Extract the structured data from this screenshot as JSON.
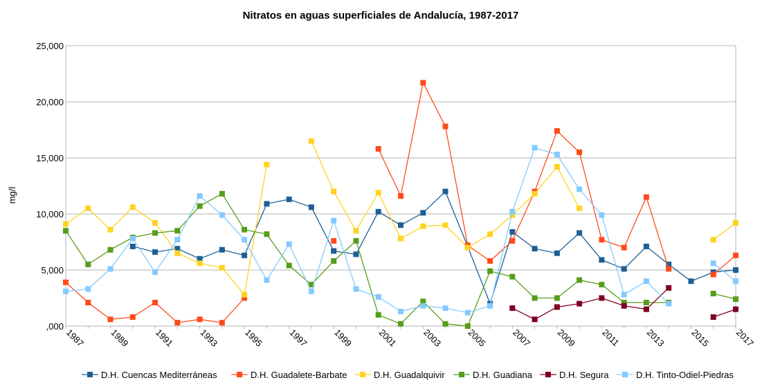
{
  "chart_data": {
    "type": "line",
    "title": "Nitratos en aguas superficiales de Andalucía, 1987-2017",
    "ylabel": "mg/l",
    "xlabel": "",
    "x": [
      1987,
      1988,
      1989,
      1990,
      1991,
      1992,
      1993,
      1994,
      1995,
      1996,
      1997,
      1998,
      1999,
      2000,
      2001,
      2002,
      2003,
      2004,
      2005,
      2006,
      2007,
      2008,
      2009,
      2010,
      2011,
      2012,
      2013,
      2014,
      2015,
      2016,
      2017
    ],
    "x_tick_labels": [
      "1987",
      "1989",
      "1991",
      "1993",
      "1995",
      "1997",
      "1999",
      "2001",
      "2003",
      "2005",
      "2007",
      "2009",
      "2011",
      "2013",
      "2015",
      "2017"
    ],
    "x_tick_values": [
      1987,
      1989,
      1991,
      1993,
      1995,
      1997,
      1999,
      2001,
      2003,
      2005,
      2007,
      2009,
      2011,
      2013,
      2015,
      2017
    ],
    "ylim": [
      0,
      25000
    ],
    "y_ticks": [
      0,
      5000,
      10000,
      15000,
      20000,
      25000
    ],
    "y_tick_labels": [
      ",000",
      "5,000",
      "10,000",
      "15,000",
      "20,000",
      "25,000"
    ],
    "grid": "horizontal",
    "legend_position": "bottom",
    "series": [
      {
        "name": "D.H. Cuencas Mediterráneas",
        "color": "#1f5f96",
        "values": [
          null,
          null,
          null,
          7.1,
          6.6,
          6.9,
          6.0,
          6.8,
          6.3,
          10.9,
          11.3,
          10.6,
          6.7,
          6.4,
          10.2,
          9.0,
          10.1,
          12.0,
          7.1,
          2.0,
          8.4,
          6.9,
          6.5,
          8.3,
          5.9,
          5.1,
          7.1,
          5.5,
          4.0,
          4.8,
          5.0
        ]
      },
      {
        "name": "D.H. Guadalete-Barbate",
        "color": "#ff4b1a",
        "values": [
          3.9,
          2.1,
          0.6,
          0.8,
          2.1,
          0.3,
          0.6,
          0.3,
          2.5,
          null,
          null,
          null,
          7.6,
          null,
          15.8,
          11.6,
          21.7,
          17.8,
          7.2,
          5.8,
          7.6,
          12.0,
          17.4,
          15.5,
          7.7,
          7.0,
          11.5,
          5.1,
          null,
          4.6,
          6.3
        ]
      },
      {
        "name": "D.H. Guadalquivir",
        "color": "#ffd320",
        "values": [
          9.1,
          10.5,
          8.6,
          10.6,
          9.2,
          6.5,
          5.6,
          5.2,
          2.8,
          14.4,
          null,
          16.5,
          12.0,
          8.5,
          11.9,
          7.8,
          8.9,
          9.0,
          7.0,
          8.2,
          9.9,
          11.8,
          14.2,
          10.5,
          null,
          null,
          null,
          null,
          null,
          7.7,
          9.2
        ]
      },
      {
        "name": "D.H. Guadiana",
        "color": "#579d1c",
        "values": [
          8.5,
          5.5,
          6.8,
          7.9,
          8.3,
          8.5,
          10.7,
          11.8,
          8.6,
          8.2,
          5.4,
          3.7,
          5.8,
          7.6,
          1.0,
          0.2,
          2.2,
          0.2,
          0.0,
          4.9,
          4.4,
          2.5,
          2.5,
          4.1,
          3.7,
          2.1,
          2.1,
          2.1,
          null,
          2.9,
          2.4
        ]
      },
      {
        "name": "D.H. Segura",
        "color": "#7e0021",
        "values": [
          null,
          null,
          null,
          null,
          null,
          null,
          null,
          null,
          null,
          null,
          null,
          null,
          null,
          null,
          null,
          null,
          null,
          null,
          null,
          null,
          1.6,
          0.6,
          1.7,
          2.0,
          2.5,
          1.8,
          1.5,
          3.4,
          null,
          0.8,
          1.5
        ]
      },
      {
        "name": "D.H. Tinto-Odiel-Piedras",
        "color": "#83caff",
        "values": [
          3.1,
          3.3,
          5.1,
          7.8,
          4.8,
          7.7,
          11.6,
          9.9,
          7.7,
          4.1,
          7.3,
          3.1,
          9.4,
          3.3,
          2.6,
          1.3,
          1.8,
          1.6,
          1.2,
          1.8,
          10.2,
          15.9,
          15.3,
          12.2,
          9.9,
          2.8,
          4.0,
          2.0,
          null,
          5.6,
          4.0
        ]
      }
    ]
  }
}
